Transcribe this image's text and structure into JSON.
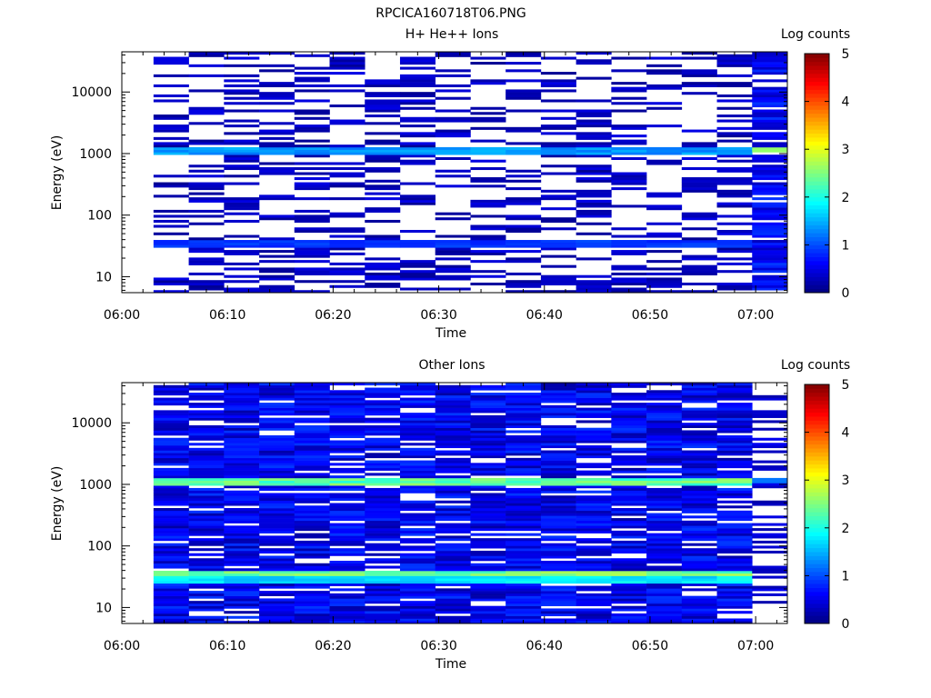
{
  "figure_title": "RPCICA160718T06.PNG",
  "chart_data": [
    {
      "type": "heatmap",
      "title": "H+ He++ Ions",
      "xlabel": "Time",
      "ylabel": "Energy (eV)",
      "y_scale": "log",
      "ylim": [
        5.5,
        45000
      ],
      "xlim": [
        "06:00",
        "07:03"
      ],
      "x_ticks": [
        "06:00",
        "06:10",
        "06:20",
        "06:30",
        "06:40",
        "06:50",
        "07:00"
      ],
      "y_ticks": [
        "10",
        "100",
        "1000",
        "10000"
      ],
      "time_bins_start": "06:03",
      "time_bins_end": "07:03",
      "colorbar": {
        "label": "Log counts",
        "min": 0,
        "max": 5,
        "ticks": [
          "0",
          "1",
          "2",
          "3",
          "4",
          "5"
        ]
      },
      "fill_level": 0.35,
      "noise_seed": 7,
      "bands": [
        {
          "energy_eV": 1150,
          "log_counts": 1.4
        },
        {
          "energy_eV": 35,
          "log_counts": 0.9
        }
      ],
      "last_bin_log_counts": 0.6,
      "last_bin_band": {
        "energy_eV": 1150,
        "log_counts": 2.6
      }
    },
    {
      "type": "heatmap",
      "title": "Other Ions",
      "xlabel": "Time",
      "ylabel": "Energy (eV)",
      "y_scale": "log",
      "ylim": [
        5.5,
        45000
      ],
      "xlim": [
        "06:00",
        "07:03"
      ],
      "x_ticks": [
        "06:00",
        "06:10",
        "06:20",
        "06:30",
        "06:40",
        "06:50",
        "07:00"
      ],
      "y_ticks": [
        "10",
        "100",
        "1000",
        "10000"
      ],
      "time_bins_start": "06:03",
      "time_bins_end": "07:03",
      "colorbar": {
        "label": "Log counts",
        "min": 0,
        "max": 5,
        "ticks": [
          "0",
          "1",
          "2",
          "3",
          "4",
          "5"
        ]
      },
      "fill_level": 0.85,
      "noise_seed": 19,
      "bands": [
        {
          "energy_eV": 1150,
          "log_counts": 2.4
        },
        {
          "energy_eV": 35,
          "log_counts": 2.5
        },
        {
          "energy_eV": 28,
          "log_counts": 1.8
        }
      ],
      "last_bin_log_counts": 0.4,
      "last_bin_band": {
        "energy_eV": 1150,
        "log_counts": 1.2
      }
    }
  ]
}
